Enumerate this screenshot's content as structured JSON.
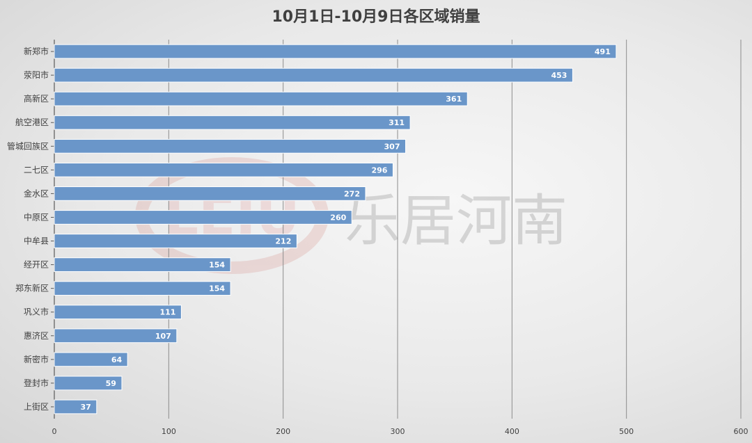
{
  "chart_data": {
    "type": "bar",
    "orientation": "horizontal",
    "title": "10月1日-10月9日各区域销量",
    "categories": [
      "新郑市",
      "荥阳市",
      "高新区",
      "航空港区",
      "管城回族区",
      "二七区",
      "金水区",
      "中原区",
      "中牟县",
      "经开区",
      "郑东新区",
      "巩义市",
      "惠济区",
      "新密市",
      "登封市",
      "上街区"
    ],
    "values": [
      491,
      453,
      361,
      311,
      307,
      296,
      272,
      260,
      212,
      154,
      154,
      111,
      107,
      64,
      59,
      37
    ],
    "xlim": [
      0,
      600
    ],
    "xticks": [
      0,
      100,
      200,
      300,
      400,
      500,
      600
    ],
    "grid": true,
    "legend": "none",
    "bar_color": "#6a96c9",
    "data_labels": true
  },
  "watermark": {
    "logo": "LEJU",
    "text": "乐居河南",
    "color": "#c0392b"
  }
}
